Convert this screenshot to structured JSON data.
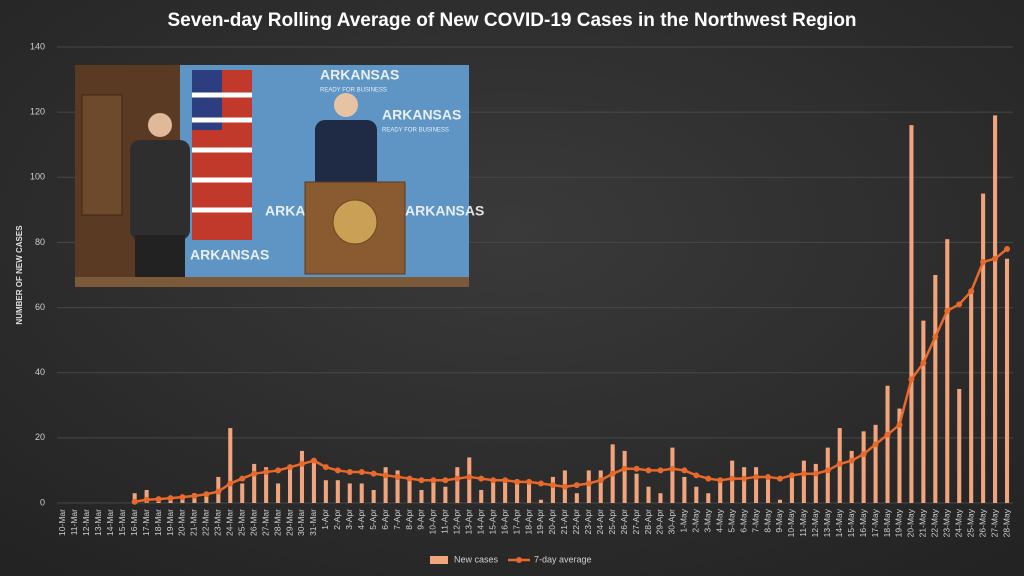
{
  "chart_data": {
    "type": "combo",
    "title": "Seven-day Rolling Average of New COVID-19 Cases in the Northwest Region",
    "y_label": "NUMBER OF NEW CASES",
    "categories": [
      "10-Mar",
      "11-Mar",
      "12-Mar",
      "13-Mar",
      "14-Mar",
      "15-Mar",
      "16-Mar",
      "17-Mar",
      "18-Mar",
      "19-Mar",
      "20-Mar",
      "21-Mar",
      "22-Mar",
      "23-Mar",
      "24-Mar",
      "25-Mar",
      "26-Mar",
      "27-Mar",
      "28-Mar",
      "29-Mar",
      "30-Mar",
      "31-Mar",
      "1-Apr",
      "2-Apr",
      "3-Apr",
      "4-Apr",
      "5-Apr",
      "6-Apr",
      "7-Apr",
      "8-Apr",
      "9-Apr",
      "10-Apr",
      "11-Apr",
      "12-Apr",
      "13-Apr",
      "14-Apr",
      "15-Apr",
      "16-Apr",
      "17-Apr",
      "18-Apr",
      "19-Apr",
      "20-Apr",
      "21-Apr",
      "22-Apr",
      "23-Apr",
      "24-Apr",
      "25-Apr",
      "26-Apr",
      "27-Apr",
      "28-Apr",
      "29-Apr",
      "30-Apr",
      "1-May",
      "2-May",
      "3-May",
      "4-May",
      "5-May",
      "6-May",
      "7-May",
      "8-May",
      "9-May",
      "10-May",
      "11-May",
      "12-May",
      "13-May",
      "14-May",
      "15-May",
      "16-May",
      "17-May",
      "18-May",
      "19-May",
      "20-May",
      "21-May",
      "22-May",
      "23-May",
      "24-May",
      "25-May",
      "26-May",
      "27-May",
      "28-May"
    ],
    "series": [
      {
        "name": "New cases",
        "type": "bar",
        "color": "#f2a57c",
        "values": [
          0,
          0,
          0,
          0,
          0,
          0,
          3,
          4,
          1,
          2,
          2,
          3,
          3,
          8,
          23,
          6,
          12,
          11,
          6,
          11,
          16,
          13,
          7,
          7,
          6,
          6,
          4,
          11,
          10,
          7,
          4,
          7,
          5,
          11,
          14,
          4,
          7,
          7,
          6,
          6,
          1,
          8,
          10,
          3,
          10,
          10,
          18,
          16,
          9,
          5,
          3,
          17,
          8,
          5,
          3,
          7,
          13,
          11,
          11,
          8,
          1,
          9,
          13,
          12,
          17,
          23,
          16,
          22,
          24,
          36,
          29,
          116,
          56,
          70,
          81,
          35,
          65,
          95,
          119,
          75
        ]
      },
      {
        "name": "7-day average",
        "type": "line",
        "color": "#e8692c",
        "values": [
          null,
          null,
          null,
          null,
          null,
          null,
          0.4,
          1,
          1.2,
          1.5,
          1.8,
          2.2,
          2.7,
          3.5,
          6,
          7.5,
          9,
          9.5,
          10,
          11,
          12,
          13,
          11,
          10,
          9.5,
          9.5,
          9,
          8.5,
          8,
          7.5,
          7,
          7,
          7,
          7.5,
          8,
          7.5,
          7,
          7,
          6.5,
          6.5,
          6,
          5.5,
          5,
          5.5,
          6,
          7,
          9,
          10.5,
          10.5,
          10,
          10,
          10.5,
          10,
          8.5,
          7.5,
          7,
          7.5,
          7.5,
          8,
          8,
          7.5,
          8.5,
          9,
          9,
          10,
          12,
          13,
          15,
          18,
          21,
          24,
          38,
          43,
          51,
          59,
          61,
          65,
          74,
          75,
          78
        ]
      }
    ],
    "ylim": [
      0,
      140
    ],
    "yticks": [
      0,
      20,
      40,
      60,
      80,
      100,
      120,
      140
    ],
    "grid": true,
    "legend": "bottom"
  },
  "video_inset": {
    "backdrop_text": "ARKANSAS",
    "tagline": "READY FOR BUSINESS"
  }
}
